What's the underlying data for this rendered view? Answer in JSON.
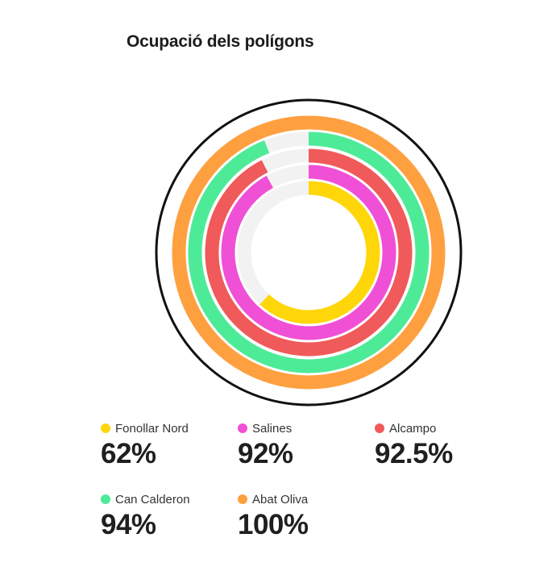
{
  "title": "Ocupació dels polígons",
  "chart_data": {
    "type": "radial-bar",
    "title": "Ocupació dels polígons",
    "unit": "%",
    "max": 100,
    "series": [
      {
        "name": "Fonollar Nord",
        "value": 62,
        "label": "62%",
        "color": "#FFD60A"
      },
      {
        "name": "Salines",
        "value": 92,
        "label": "92%",
        "color": "#F050D5"
      },
      {
        "name": "Alcampo",
        "value": 92.5,
        "label": "92.5%",
        "color": "#F05A5A"
      },
      {
        "name": "Can Calderon",
        "value": 94,
        "label": "94%",
        "color": "#4DEB98"
      },
      {
        "name": "Abat Oliva",
        "value": 100,
        "label": "100%",
        "color": "#FFA040"
      }
    ],
    "track_color": "#F2F2F2",
    "outline_color": "#111111"
  }
}
